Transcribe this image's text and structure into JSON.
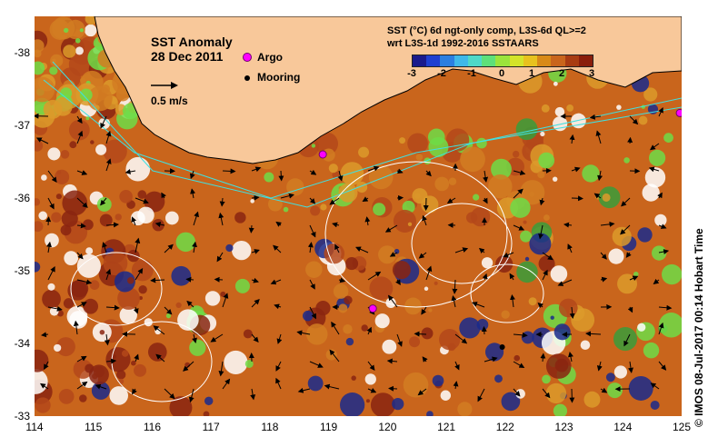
{
  "map": {
    "title": "SST Anomaly",
    "date": "28 Dec 2011",
    "vector_scale_label": "0.5 m/s",
    "legend": {
      "argo_label": "Argo",
      "mooring_label": "Mooring"
    },
    "product_line1": "SST (°C) 6d ngt-only comp, L3S-6d QL>=2",
    "product_line2": "wrt L3S-1d 1992-2016 SSTAARS",
    "colorbar_ticks": [
      "-3",
      "-2",
      "-1",
      "0",
      "1",
      "2",
      "3"
    ],
    "colorbar_range": [
      -3,
      3
    ],
    "colorbar_colors": [
      "#1a1a8c",
      "#1f3fd0",
      "#2c7fe0",
      "#3fb8e8",
      "#4fd8c8",
      "#5ee07a",
      "#9be43c",
      "#d4e42a",
      "#e8c21e",
      "#d88a18",
      "#c9651c",
      "#a83c12",
      "#8a1e0c"
    ],
    "x_ticks": [
      "114",
      "115",
      "116",
      "117",
      "118",
      "119",
      "120",
      "121",
      "122",
      "123",
      "124",
      "125"
    ],
    "y_ticks": [
      "-33",
      "-34",
      "-35",
      "-36",
      "-37",
      "-38"
    ],
    "lon_range": [
      114,
      125
    ],
    "lat_range": [
      -33,
      -38.5
    ],
    "credit": "© IMOS 08-Jul-2017 00:14 Hobart Time",
    "colors": {
      "land": "#f8c89a",
      "anomaly_base": "#c9651c",
      "anomaly_dark": "#8a2410",
      "anomaly_light": "#dc9a2a",
      "cool_green": "#6fdc46",
      "argo": "#ff00ff",
      "bathymetry": "#40e0e0"
    },
    "argo_floats": [
      {
        "lon": 119.75,
        "lat": -34.48
      },
      {
        "lon": 118.9,
        "lat": -36.6
      },
      {
        "lon": 124.97,
        "lat": -37.17
      }
    ],
    "moorings": [
      {
        "lon": 121.95,
        "lat": -33.95
      }
    ]
  }
}
